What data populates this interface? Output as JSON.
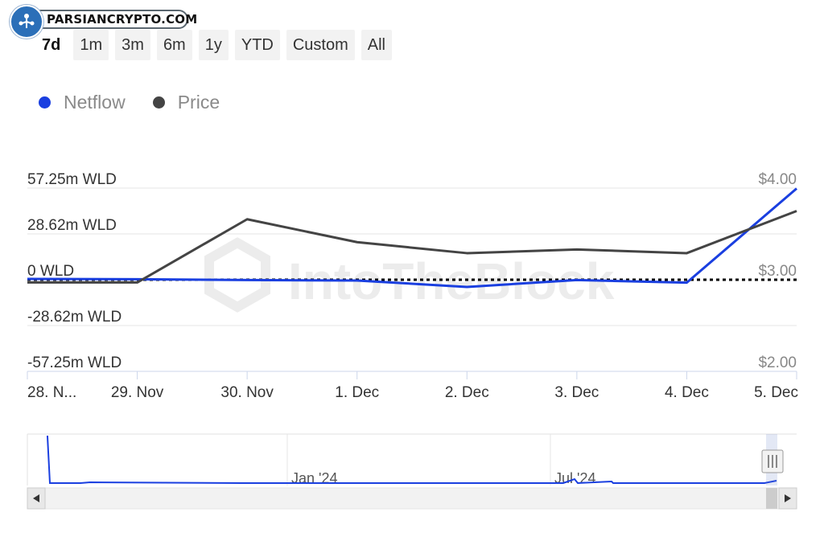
{
  "watermark_logo": {
    "text": "PARSIANCRYPTO.COM",
    "brand_color": "#2b6fb8"
  },
  "range_buttons": [
    {
      "label": "7d",
      "active": true
    },
    {
      "label": "1m",
      "active": false
    },
    {
      "label": "3m",
      "active": false
    },
    {
      "label": "6m",
      "active": false
    },
    {
      "label": "1y",
      "active": false
    },
    {
      "label": "YTD",
      "active": false
    },
    {
      "label": "Custom",
      "active": false
    },
    {
      "label": "All",
      "active": false
    }
  ],
  "legend": [
    {
      "name": "Netflow",
      "color": "#1a3fe0"
    },
    {
      "name": "Price",
      "color": "#444444"
    }
  ],
  "chart_watermark": "IntoTheBlock",
  "chart_data": {
    "type": "line",
    "categories": [
      "28. N...",
      "29. Nov",
      "30. Nov",
      "1. Dec",
      "2. Dec",
      "3. Dec",
      "4. Dec",
      "5. Dec"
    ],
    "left_axis": {
      "ticks": [
        "57.25m WLD",
        "28.62m WLD",
        "0 WLD",
        "-28.62m WLD",
        "-57.25m WLD"
      ],
      "tick_values": [
        57.25,
        28.62,
        0,
        -28.62,
        -57.25
      ],
      "range": [
        -57.25,
        57.25
      ]
    },
    "right_axis": {
      "ticks": [
        "$4.00",
        "$3.00",
        "$2.00"
      ],
      "tick_values": [
        4.0,
        3.0,
        2.0
      ],
      "range": [
        2.0,
        4.0
      ]
    },
    "series": [
      {
        "name": "Netflow",
        "axis": "left",
        "color": "#1a3fe0",
        "values": [
          0.5,
          0.3,
          -0.2,
          -0.5,
          -4.5,
          -0.2,
          -1.8,
          57.0
        ]
      },
      {
        "name": "Price",
        "axis": "right",
        "color": "#444444",
        "values": [
          2.97,
          2.97,
          3.66,
          3.41,
          3.29,
          3.33,
          3.29,
          3.75
        ]
      }
    ],
    "zero_line": {
      "style": "dotted",
      "color": "#000000"
    },
    "grid": true
  },
  "navigator": {
    "labels": [
      "Jan '24",
      "Jul '24"
    ],
    "series_color": "#1a3fe0",
    "scroll_left_icon": "arrow-left-icon",
    "scroll_right_icon": "arrow-right-icon"
  }
}
